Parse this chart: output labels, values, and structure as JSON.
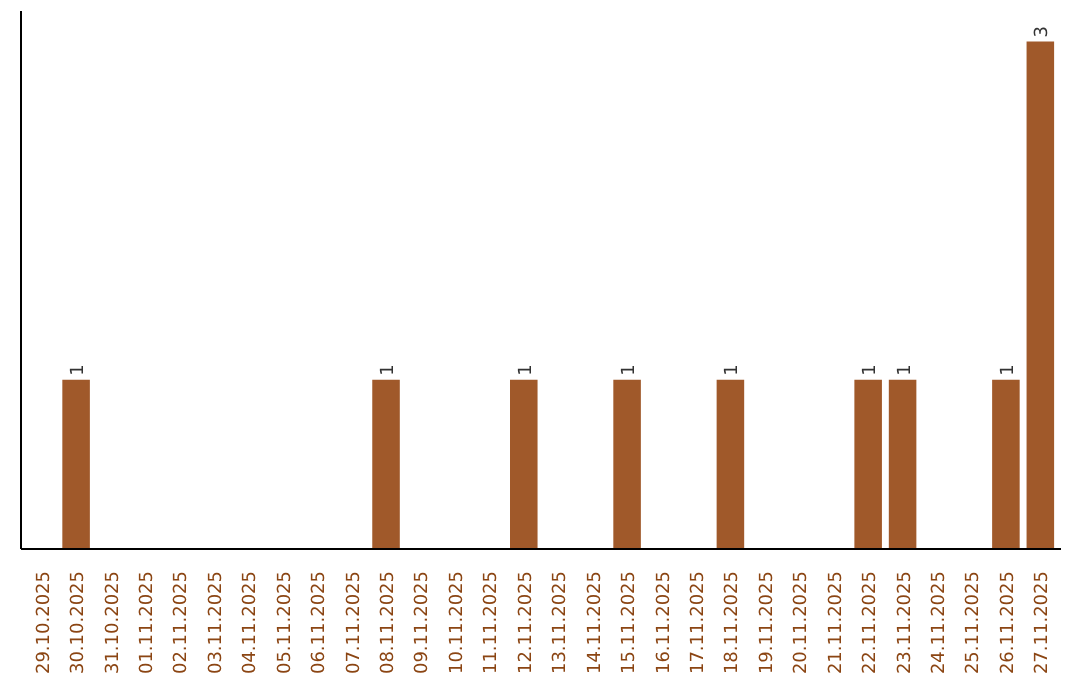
{
  "chart_data": {
    "type": "bar",
    "categories": [
      "29.10.2025",
      "30.10.2025",
      "31.10.2025",
      "01.11.2025",
      "02.11.2025",
      "03.11.2025",
      "04.11.2025",
      "05.11.2025",
      "06.11.2025",
      "07.11.2025",
      "08.11.2025",
      "09.11.2025",
      "10.11.2025",
      "11.11.2025",
      "12.11.2025",
      "13.11.2025",
      "14.11.2025",
      "15.11.2025",
      "16.11.2025",
      "17.11.2025",
      "18.11.2025",
      "19.11.2025",
      "20.11.2025",
      "21.11.2025",
      "22.11.2025",
      "23.11.2025",
      "24.11.2025",
      "25.11.2025",
      "26.11.2025",
      "27.11.2025"
    ],
    "values": [
      0,
      1,
      0,
      0,
      0,
      0,
      0,
      0,
      0,
      0,
      1,
      0,
      0,
      0,
      1,
      0,
      0,
      1,
      0,
      0,
      1,
      0,
      0,
      0,
      1,
      1,
      0,
      0,
      1,
      3
    ],
    "value_labels": [
      null,
      "1",
      null,
      null,
      null,
      null,
      null,
      null,
      null,
      null,
      "1",
      null,
      null,
      null,
      "1",
      null,
      null,
      "1",
      null,
      null,
      "1",
      null,
      null,
      null,
      "1",
      "1",
      null,
      null,
      "1",
      "3"
    ],
    "color": "#a0592a",
    "grid": false
  }
}
